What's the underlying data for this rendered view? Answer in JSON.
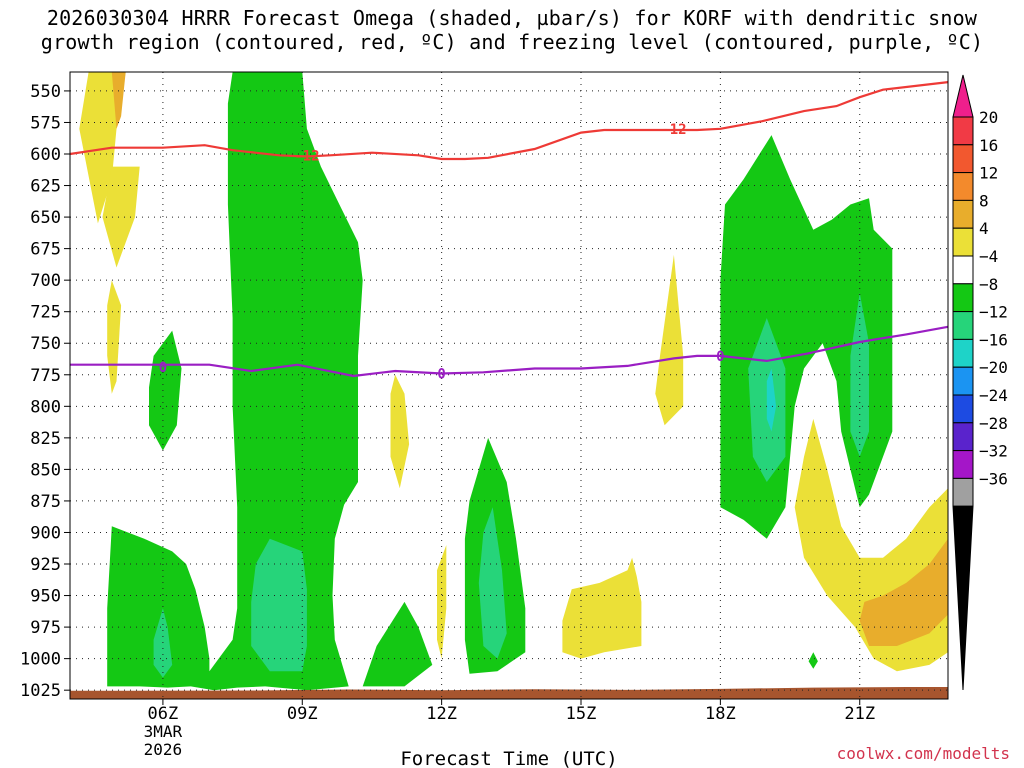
{
  "title_lines": [
    "2026030304 HRRR Forecast Omega (shaded, µbar/s) for KORF with dendritic snow",
    "growth region (contoured, red, ºC) and freezing level (contoured, purple, ºC)"
  ],
  "credit": "coolwx.com/modelts",
  "chart_data": {
    "type": "time-height cross section",
    "xlabel": "Forecast Time (UTC)",
    "x_ticks": [
      {
        "label": "06Z",
        "hour": 6
      },
      {
        "label": "09Z",
        "hour": 9
      },
      {
        "label": "12Z",
        "hour": 12
      },
      {
        "label": "15Z",
        "hour": 15
      },
      {
        "label": "18Z",
        "hour": 18
      },
      {
        "label": "21Z",
        "hour": 21
      }
    ],
    "date_label": [
      "3MAR",
      "2026"
    ],
    "x_range_hours": [
      4.0,
      22.9
    ],
    "y_ticks": [
      550,
      575,
      600,
      625,
      650,
      675,
      700,
      725,
      750,
      775,
      800,
      825,
      850,
      875,
      900,
      925,
      950,
      975,
      1000,
      1025
    ],
    "y_range_hPa": [
      535,
      1032
    ],
    "grid": true,
    "colorbar": {
      "labels": [
        "20",
        "16",
        "12",
        "8",
        "4",
        "−4",
        "−8",
        "−12",
        "−16",
        "−20",
        "−24",
        "−28",
        "−32",
        "−36"
      ],
      "colors": [
        "#f13a45",
        "#f2582f",
        "#f38a2c",
        "#e8ad2c",
        "#ebe037",
        "#ffffff",
        "#14c814",
        "#26d47a",
        "#1ed3c8",
        "#1b94f2",
        "#1d4be2",
        "#5a23cc",
        "#a416c8",
        "#a0a0a0"
      ],
      "top_color": "#ef1f8c",
      "bottom_color": "#000000"
    },
    "dgz_contour": {
      "color": "#ee3a36",
      "labels": [
        {
          "text": "-12",
          "hour": 9.1,
          "p": 601
        },
        {
          "text": "-12",
          "hour": 17.0,
          "p": 580
        }
      ],
      "points": [
        [
          4.0,
          600
        ],
        [
          4.9,
          595
        ],
        [
          5.5,
          595
        ],
        [
          6.0,
          595
        ],
        [
          6.9,
          593
        ],
        [
          7.5,
          597
        ],
        [
          8.5,
          601
        ],
        [
          9.1,
          602
        ],
        [
          9.6,
          601
        ],
        [
          10.5,
          599
        ],
        [
          11.5,
          601
        ],
        [
          12.0,
          604
        ],
        [
          12.5,
          604
        ],
        [
          13.0,
          603
        ],
        [
          14.0,
          596
        ],
        [
          15.0,
          583
        ],
        [
          15.5,
          581
        ],
        [
          16.5,
          581
        ],
        [
          17.5,
          581
        ],
        [
          18.0,
          580
        ],
        [
          18.9,
          574
        ],
        [
          19.8,
          566
        ],
        [
          20.5,
          562
        ],
        [
          21.0,
          555
        ],
        [
          21.5,
          549
        ],
        [
          22.9,
          543
        ]
      ]
    },
    "freezing_contour": {
      "color": "#9a1ec3",
      "labels": [
        {
          "text": "0",
          "hour": 6.0,
          "p": 769
        },
        {
          "text": "0",
          "hour": 12.0,
          "p": 774
        },
        {
          "text": "0",
          "hour": 18.0,
          "p": 760
        }
      ],
      "points": [
        [
          4.0,
          767
        ],
        [
          5.0,
          767
        ],
        [
          6.0,
          767
        ],
        [
          7.0,
          767
        ],
        [
          7.9,
          772
        ],
        [
          8.9,
          767
        ],
        [
          10.1,
          776
        ],
        [
          11.0,
          772
        ],
        [
          12.0,
          774
        ],
        [
          12.9,
          773
        ],
        [
          14.0,
          770
        ],
        [
          15.0,
          770
        ],
        [
          16.0,
          768
        ],
        [
          17.0,
          762
        ],
        [
          17.5,
          760
        ],
        [
          18.0,
          760
        ],
        [
          19.0,
          764
        ],
        [
          19.9,
          758
        ],
        [
          21.0,
          749
        ],
        [
          22.0,
          743
        ],
        [
          22.9,
          737
        ]
      ]
    },
    "terrain_color": "#a7552e",
    "omega_fields": [
      {
        "value": "4 to 8",
        "color": "#ebe037",
        "points": [
          [
            4.4,
            535
          ],
          [
            5.2,
            535
          ],
          [
            5.0,
            580
          ],
          [
            4.9,
            620
          ],
          [
            4.6,
            655
          ],
          [
            4.2,
            580
          ]
        ]
      },
      {
        "value": "4 to 8",
        "color": "#ebe037",
        "points": [
          [
            4.9,
            610
          ],
          [
            5.5,
            610
          ],
          [
            5.4,
            650
          ],
          [
            5.0,
            690
          ],
          [
            4.7,
            650
          ]
        ]
      },
      {
        "value": "8 to 12",
        "color": "#e8ad2c",
        "points": [
          [
            4.9,
            535
          ],
          [
            5.2,
            535
          ],
          [
            5.1,
            570
          ],
          [
            5.0,
            580
          ]
        ]
      },
      {
        "value": "4 to 8",
        "color": "#ebe037",
        "points": [
          [
            4.9,
            700
          ],
          [
            5.1,
            720
          ],
          [
            5.0,
            780
          ],
          [
            4.9,
            790
          ],
          [
            4.8,
            760
          ],
          [
            4.8,
            720
          ]
        ]
      },
      {
        "value": "-4 to -8",
        "color": "#14c814",
        "points": [
          [
            5.8,
            760
          ],
          [
            6.2,
            740
          ],
          [
            6.4,
            770
          ],
          [
            6.3,
            815
          ],
          [
            6.0,
            835
          ],
          [
            5.7,
            815
          ],
          [
            5.7,
            785
          ]
        ]
      },
      {
        "value": "-4 to -8",
        "color": "#14c814",
        "points": [
          [
            4.8,
            1022
          ],
          [
            4.8,
            960
          ],
          [
            4.9,
            895
          ],
          [
            5.6,
            905
          ],
          [
            6.2,
            915
          ],
          [
            6.5,
            925
          ],
          [
            6.7,
            945
          ],
          [
            6.9,
            975
          ],
          [
            7.0,
            1000
          ],
          [
            7.0,
            1010
          ],
          [
            7.5,
            985
          ],
          [
            7.6,
            960
          ],
          [
            7.6,
            880
          ],
          [
            7.5,
            800
          ],
          [
            7.5,
            730
          ],
          [
            7.4,
            640
          ],
          [
            7.4,
            560
          ],
          [
            7.5,
            535
          ],
          [
            9.0,
            535
          ],
          [
            9.1,
            580
          ],
          [
            9.4,
            610
          ],
          [
            9.8,
            640
          ],
          [
            10.2,
            670
          ],
          [
            10.3,
            700
          ],
          [
            10.2,
            760
          ],
          [
            10.2,
            860
          ],
          [
            9.9,
            878
          ],
          [
            9.7,
            905
          ],
          [
            9.65,
            950
          ],
          [
            9.7,
            985
          ],
          [
            10.0,
            1022
          ],
          [
            9.1,
            1025
          ],
          [
            8.2,
            1022
          ],
          [
            7.6,
            1023
          ],
          [
            7.1,
            1025
          ],
          [
            6.6,
            1022
          ],
          [
            6.1,
            1023
          ],
          [
            5.5,
            1022
          ]
        ]
      },
      {
        "value": "-8 to -12",
        "color": "#26d47a",
        "points": [
          [
            8.0,
            925
          ],
          [
            8.3,
            905
          ],
          [
            9.0,
            915
          ],
          [
            9.1,
            945
          ],
          [
            9.1,
            990
          ],
          [
            9.0,
            1010
          ],
          [
            8.3,
            1010
          ],
          [
            7.9,
            990
          ],
          [
            7.9,
            955
          ]
        ]
      },
      {
        "value": "-8 to -12",
        "color": "#26d47a",
        "points": [
          [
            5.8,
            985
          ],
          [
            6.0,
            960
          ],
          [
            6.1,
            975
          ],
          [
            6.2,
            1005
          ],
          [
            6.0,
            1015
          ],
          [
            5.8,
            1005
          ]
        ]
      },
      {
        "value": "-4 to -8",
        "color": "#14c814",
        "points": [
          [
            11.2,
            1022
          ],
          [
            11.8,
            1005
          ],
          [
            11.5,
            975
          ],
          [
            11.2,
            955
          ],
          [
            10.6,
            990
          ],
          [
            10.3,
            1022
          ]
        ]
      },
      {
        "value": "4 to 8",
        "color": "#ebe037",
        "points": [
          [
            11.0,
            775
          ],
          [
            11.2,
            790
          ],
          [
            11.3,
            830
          ],
          [
            11.1,
            865
          ],
          [
            10.9,
            840
          ],
          [
            10.9,
            790
          ]
        ]
      },
      {
        "value": "4 to 8",
        "color": "#ebe037",
        "points": [
          [
            11.9,
            930
          ],
          [
            12.1,
            910
          ],
          [
            12.1,
            960
          ],
          [
            12.0,
            1000
          ],
          [
            11.9,
            985
          ]
        ]
      },
      {
        "value": "-4 to -8",
        "color": "#14c814",
        "points": [
          [
            12.5,
            985
          ],
          [
            12.5,
            905
          ],
          [
            12.6,
            875
          ],
          [
            13.0,
            825
          ],
          [
            13.4,
            860
          ],
          [
            13.6,
            905
          ],
          [
            13.8,
            960
          ],
          [
            13.8,
            995
          ],
          [
            13.2,
            1010
          ],
          [
            12.6,
            1012
          ]
        ]
      },
      {
        "value": "-8 to -12",
        "color": "#26d47a",
        "points": [
          [
            12.9,
            900
          ],
          [
            13.1,
            880
          ],
          [
            13.3,
            930
          ],
          [
            13.4,
            980
          ],
          [
            13.2,
            1000
          ],
          [
            12.9,
            990
          ],
          [
            12.8,
            940
          ]
        ]
      },
      {
        "value": "4 to 8",
        "color": "#ebe037",
        "points": [
          [
            14.6,
            970
          ],
          [
            14.8,
            945
          ],
          [
            15.4,
            940
          ],
          [
            16.0,
            930
          ],
          [
            16.1,
            920
          ],
          [
            16.2,
            935
          ],
          [
            16.3,
            955
          ],
          [
            16.3,
            990
          ],
          [
            15.5,
            995
          ],
          [
            15.0,
            1000
          ],
          [
            14.6,
            995
          ]
        ]
      },
      {
        "value": "4 to 8",
        "color": "#ebe037",
        "points": [
          [
            16.7,
            760
          ],
          [
            17.0,
            680
          ],
          [
            17.2,
            760
          ],
          [
            17.2,
            800
          ],
          [
            16.8,
            815
          ],
          [
            16.6,
            790
          ]
        ]
      },
      {
        "value": "-4 to -8",
        "color": "#14c814",
        "points": [
          [
            18.0,
            880
          ],
          [
            18.0,
            780
          ],
          [
            18.0,
            700
          ],
          [
            18.1,
            640
          ],
          [
            18.5,
            620
          ],
          [
            19.1,
            585
          ],
          [
            19.5,
            620
          ],
          [
            20.0,
            660
          ],
          [
            20.4,
            652
          ],
          [
            20.8,
            640
          ],
          [
            21.2,
            635
          ],
          [
            21.3,
            660
          ],
          [
            21.7,
            675
          ],
          [
            21.7,
            740
          ],
          [
            21.7,
            820
          ],
          [
            21.2,
            870
          ],
          [
            21.0,
            880
          ],
          [
            20.8,
            850
          ],
          [
            20.6,
            820
          ],
          [
            20.5,
            780
          ],
          [
            20.2,
            750
          ],
          [
            19.8,
            770
          ],
          [
            19.6,
            800
          ],
          [
            19.5,
            840
          ],
          [
            19.4,
            880
          ],
          [
            19.0,
            905
          ],
          [
            18.5,
            890
          ]
        ]
      },
      {
        "value": "-8 to -12",
        "color": "#26d47a",
        "points": [
          [
            18.6,
            770
          ],
          [
            19.0,
            730
          ],
          [
            19.4,
            770
          ],
          [
            19.4,
            840
          ],
          [
            19.0,
            860
          ],
          [
            18.7,
            840
          ]
        ]
      },
      {
        "value": "-8 to -12",
        "color": "#26d47a",
        "points": [
          [
            20.8,
            760
          ],
          [
            21.0,
            710
          ],
          [
            21.2,
            750
          ],
          [
            21.2,
            820
          ],
          [
            21.0,
            840
          ],
          [
            20.8,
            820
          ]
        ]
      },
      {
        "value": "-12 to -16",
        "color": "#1ed3c8",
        "points": [
          [
            19.0,
            780
          ],
          [
            19.1,
            770
          ],
          [
            19.2,
            800
          ],
          [
            19.1,
            820
          ],
          [
            19.0,
            810
          ]
        ]
      },
      {
        "value": "4 to 8",
        "color": "#ebe037",
        "points": [
          [
            19.6,
            880
          ],
          [
            19.8,
            840
          ],
          [
            20.0,
            810
          ],
          [
            20.3,
            850
          ],
          [
            20.6,
            895
          ],
          [
            21.0,
            920
          ],
          [
            21.5,
            920
          ],
          [
            22.0,
            905
          ],
          [
            22.5,
            880
          ],
          [
            22.9,
            865
          ],
          [
            22.9,
            995
          ],
          [
            22.5,
            1005
          ],
          [
            21.8,
            1010
          ],
          [
            21.3,
            1000
          ],
          [
            20.9,
            975
          ],
          [
            20.3,
            950
          ],
          [
            19.8,
            920
          ]
        ]
      },
      {
        "value": "8 to 12",
        "color": "#e8ad2c",
        "points": [
          [
            21.1,
            955
          ],
          [
            21.5,
            950
          ],
          [
            22.0,
            940
          ],
          [
            22.5,
            925
          ],
          [
            22.9,
            905
          ],
          [
            22.9,
            965
          ],
          [
            22.5,
            980
          ],
          [
            21.8,
            990
          ],
          [
            21.2,
            990
          ],
          [
            21.0,
            970
          ]
        ]
      },
      {
        "value": "-4 to -8",
        "color": "#14c814",
        "points": [
          [
            19.9,
            1002
          ],
          [
            20.0,
            995
          ],
          [
            20.1,
            1002
          ],
          [
            20.0,
            1008
          ]
        ]
      }
    ]
  }
}
